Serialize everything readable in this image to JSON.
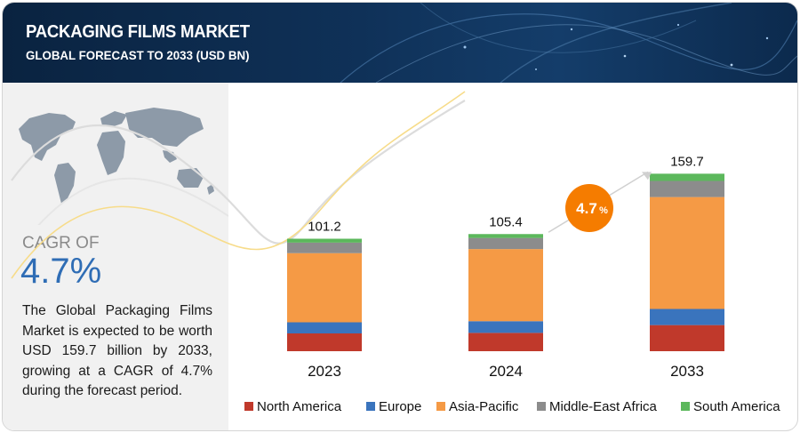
{
  "header": {
    "title": "PACKAGING FILMS MARKET",
    "subtitle": "GLOBAL FORECAST TO 2033 (USD BN)"
  },
  "sidebar": {
    "cagr_label": "CAGR OF",
    "cagr_value": "4.7%",
    "description": "The Global Packaging Films Market is expected to be worth USD 159.7 billion by 2033, growing at a CAGR of 4.7% during the forecast period."
  },
  "chart_data": {
    "type": "bar",
    "stacked": true,
    "categories": [
      "2023",
      "2024",
      "2033"
    ],
    "totals": [
      101.2,
      105.4,
      159.7
    ],
    "series": [
      {
        "name": "North America",
        "color": "#c0392b",
        "values": [
          16,
          16.5,
          23.5
        ]
      },
      {
        "name": "Europe",
        "color": "#3a74bd",
        "values": [
          10,
          10.5,
          14.5
        ]
      },
      {
        "name": "Asia-Pacific",
        "color": "#f59a45",
        "values": [
          62.2,
          64.9,
          100.7
        ]
      },
      {
        "name": "Middle-East Africa",
        "color": "#8c8c8c",
        "values": [
          9.5,
          10,
          14.5
        ]
      },
      {
        "name": "South America",
        "color": "#5cb85c",
        "values": [
          3.5,
          3.5,
          6.5
        ]
      }
    ],
    "annotation": {
      "text": "4.7",
      "suffix": "%",
      "color": "#f57c00"
    },
    "legend_position": "bottom",
    "grid": false,
    "ylim": [
      0,
      170
    ]
  }
}
